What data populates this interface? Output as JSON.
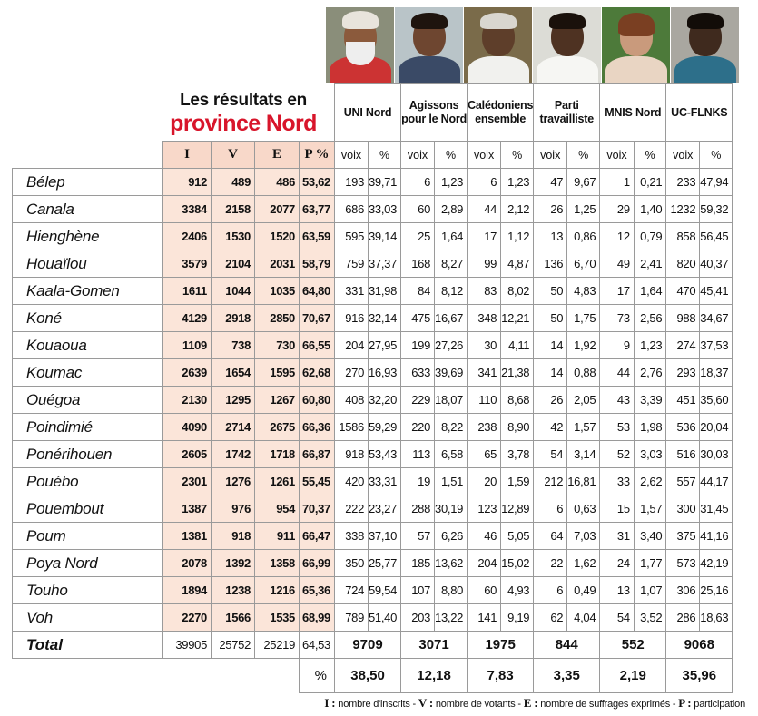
{
  "title": {
    "line1": "Les résultats en",
    "line2": "province Nord"
  },
  "columns": {
    "I": "I",
    "V": "V",
    "E": "E",
    "P": "P %",
    "voix": "voix",
    "pct": "%"
  },
  "parties": [
    {
      "name": "UNI Nord",
      "total": "9709",
      "pct": "38,50"
    },
    {
      "name": "Agissons pour le Nord",
      "total": "3071",
      "pct": "12,18"
    },
    {
      "name": "Calédoniens ensemble",
      "total": "1975",
      "pct": "7,83"
    },
    {
      "name": "Parti travailliste",
      "total": "844",
      "pct": "3,35"
    },
    {
      "name": "MNIS Nord",
      "total": "552",
      "pct": "2,19"
    },
    {
      "name": "UC-FLNKS",
      "total": "9068",
      "pct": "35,96"
    }
  ],
  "rows": [
    {
      "commune": "Bélep",
      "I": "912",
      "V": "489",
      "E": "486",
      "P": "53,62",
      "r": [
        "193",
        "39,71",
        "6",
        "1,23",
        "6",
        "1,23",
        "47",
        "9,67",
        "1",
        "0,21",
        "233",
        "47,94"
      ]
    },
    {
      "commune": "Canala",
      "I": "3384",
      "V": "2158",
      "E": "2077",
      "P": "63,77",
      "r": [
        "686",
        "33,03",
        "60",
        "2,89",
        "44",
        "2,12",
        "26",
        "1,25",
        "29",
        "1,40",
        "1232",
        "59,32"
      ]
    },
    {
      "commune": "Hienghène",
      "I": "2406",
      "V": "1530",
      "E": "1520",
      "P": "63,59",
      "r": [
        "595",
        "39,14",
        "25",
        "1,64",
        "17",
        "1,12",
        "13",
        "0,86",
        "12",
        "0,79",
        "858",
        "56,45"
      ]
    },
    {
      "commune": "Houaïlou",
      "I": "3579",
      "V": "2104",
      "E": "2031",
      "P": "58,79",
      "r": [
        "759",
        "37,37",
        "168",
        "8,27",
        "99",
        "4,87",
        "136",
        "6,70",
        "49",
        "2,41",
        "820",
        "40,37"
      ]
    },
    {
      "commune": "Kaala-Gomen",
      "I": "1611",
      "V": "1044",
      "E": "1035",
      "P": "64,80",
      "r": [
        "331",
        "31,98",
        "84",
        "8,12",
        "83",
        "8,02",
        "50",
        "4,83",
        "17",
        "1,64",
        "470",
        "45,41"
      ]
    },
    {
      "commune": "Koné",
      "I": "4129",
      "V": "2918",
      "E": "2850",
      "P": "70,67",
      "r": [
        "916",
        "32,14",
        "475",
        "16,67",
        "348",
        "12,21",
        "50",
        "1,75",
        "73",
        "2,56",
        "988",
        "34,67"
      ]
    },
    {
      "commune": "Kouaoua",
      "I": "1109",
      "V": "738",
      "E": "730",
      "P": "66,55",
      "r": [
        "204",
        "27,95",
        "199",
        "27,26",
        "30",
        "4,11",
        "14",
        "1,92",
        "9",
        "1,23",
        "274",
        "37,53"
      ]
    },
    {
      "commune": "Koumac",
      "I": "2639",
      "V": "1654",
      "E": "1595",
      "P": "62,68",
      "r": [
        "270",
        "16,93",
        "633",
        "39,69",
        "341",
        "21,38",
        "14",
        "0,88",
        "44",
        "2,76",
        "293",
        "18,37"
      ]
    },
    {
      "commune": "Ouégoa",
      "I": "2130",
      "V": "1295",
      "E": "1267",
      "P": "60,80",
      "r": [
        "408",
        "32,20",
        "229",
        "18,07",
        "110",
        "8,68",
        "26",
        "2,05",
        "43",
        "3,39",
        "451",
        "35,60"
      ]
    },
    {
      "commune": "Poindimié",
      "I": "4090",
      "V": "2714",
      "E": "2675",
      "P": "66,36",
      "r": [
        "1586",
        "59,29",
        "220",
        "8,22",
        "238",
        "8,90",
        "42",
        "1,57",
        "53",
        "1,98",
        "536",
        "20,04"
      ]
    },
    {
      "commune": "Ponérihouen",
      "I": "2605",
      "V": "1742",
      "E": "1718",
      "P": "66,87",
      "r": [
        "918",
        "53,43",
        "113",
        "6,58",
        "65",
        "3,78",
        "54",
        "3,14",
        "52",
        "3,03",
        "516",
        "30,03"
      ]
    },
    {
      "commune": "Pouébo",
      "I": "2301",
      "V": "1276",
      "E": "1261",
      "P": "55,45",
      "r": [
        "420",
        "33,31",
        "19",
        "1,51",
        "20",
        "1,59",
        "212",
        "16,81",
        "33",
        "2,62",
        "557",
        "44,17"
      ]
    },
    {
      "commune": "Pouembout",
      "I": "1387",
      "V": "976",
      "E": "954",
      "P": "70,37",
      "r": [
        "222",
        "23,27",
        "288",
        "30,19",
        "123",
        "12,89",
        "6",
        "0,63",
        "15",
        "1,57",
        "300",
        "31,45"
      ]
    },
    {
      "commune": "Poum",
      "I": "1381",
      "V": "918",
      "E": "911",
      "P": "66,47",
      "r": [
        "338",
        "37,10",
        "57",
        "6,26",
        "46",
        "5,05",
        "64",
        "7,03",
        "31",
        "3,40",
        "375",
        "41,16"
      ]
    },
    {
      "commune": "Poya Nord",
      "I": "2078",
      "V": "1392",
      "E": "1358",
      "P": "66,99",
      "r": [
        "350",
        "25,77",
        "185",
        "13,62",
        "204",
        "15,02",
        "22",
        "1,62",
        "24",
        "1,77",
        "573",
        "42,19"
      ]
    },
    {
      "commune": "Touho",
      "I": "1894",
      "V": "1238",
      "E": "1216",
      "P": "65,36",
      "r": [
        "724",
        "59,54",
        "107",
        "8,80",
        "60",
        "4,93",
        "6",
        "0,49",
        "13",
        "1,07",
        "306",
        "25,16"
      ]
    },
    {
      "commune": "Voh",
      "I": "2270",
      "V": "1566",
      "E": "1535",
      "P": "68,99",
      "r": [
        "789",
        "51,40",
        "203",
        "13,22",
        "141",
        "9,19",
        "62",
        "4,04",
        "54",
        "3,52",
        "286",
        "18,63"
      ]
    }
  ],
  "total": {
    "label": "Total",
    "I": "39905",
    "V": "25752",
    "E": "25219",
    "P": "64,53"
  },
  "pct_row_label": "%",
  "legend": {
    "I": "I :",
    "I_text": " nombre d'inscrits - ",
    "V": "V :",
    "V_text": " nombre de votants - ",
    "E": "E :",
    "E_text": " nombre de suffrages exprimés - ",
    "P": "P :",
    "P_text": " participation"
  },
  "colors": {
    "accent_red": "#d8152b",
    "header_pink": "#f8d8c9",
    "cell_pink": "#fbe5d9"
  }
}
